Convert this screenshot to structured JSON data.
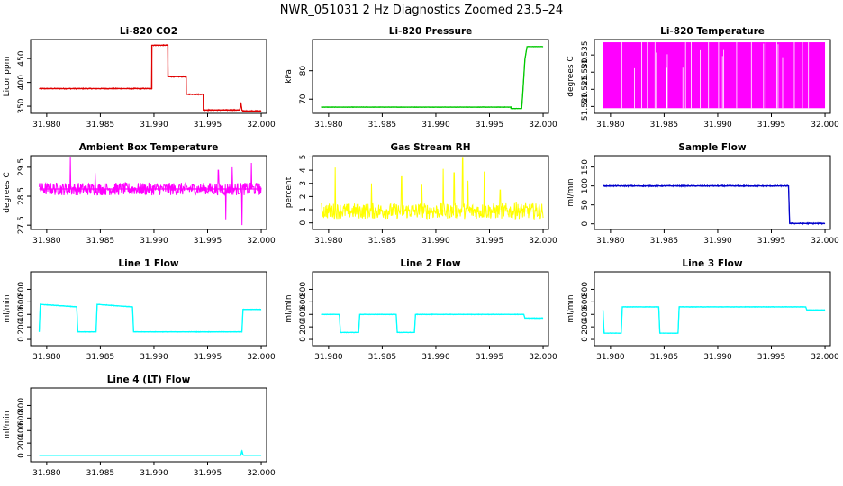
{
  "figure": {
    "title": "NWR_051031  2 Hz Diagnostics Zoomed 23.5–24"
  },
  "chart_data": [
    {
      "type": "line",
      "title": "Li-820 CO2",
      "ylabel": "Licor ppm",
      "xlim": [
        31.9785,
        32.0005
      ],
      "ylim": [
        335,
        490
      ],
      "xticks": [
        "31.980",
        "31.985",
        "31.990",
        "31.995",
        "32.000"
      ],
      "yticks": [
        "350",
        "400",
        "450"
      ],
      "color": "#e00000",
      "noise": 1.2,
      "series": [
        {
          "name": "CO2",
          "x": [
            31.9793,
            31.9898,
            31.9898,
            31.9913,
            31.9913,
            31.993,
            31.993,
            31.9946,
            31.9946,
            31.998,
            31.9981,
            31.9982,
            31.9983,
            32.0
          ],
          "y": [
            387,
            387,
            478,
            478,
            412,
            412,
            375,
            375,
            342,
            342,
            358,
            342,
            340,
            340
          ]
        }
      ]
    },
    {
      "type": "line",
      "title": "Li-820 Pressure",
      "ylabel": "kPa",
      "xlim": [
        31.9785,
        32.0005
      ],
      "ylim": [
        65,
        91
      ],
      "xticks": [
        "31.980",
        "31.985",
        "31.990",
        "31.995",
        "32.000"
      ],
      "yticks": [
        "70",
        "80"
      ],
      "color": "#00c800",
      "noise": 0.1,
      "series": [
        {
          "name": "Pressure",
          "x": [
            31.9793,
            31.997,
            31.997,
            31.998,
            31.9981,
            31.9983,
            31.9985,
            32.0
          ],
          "y": [
            67.2,
            67.2,
            66.7,
            66.7,
            72,
            84,
            88.5,
            88.5
          ]
        }
      ]
    },
    {
      "type": "line",
      "title": "Li-820 Temperature",
      "ylabel": "degrees C",
      "xlim": [
        31.9785,
        32.0005
      ],
      "ylim": [
        51.518,
        51.5395
      ],
      "xticks": [
        "31.980",
        "31.985",
        "31.990",
        "31.995",
        "32.000"
      ],
      "yticks": [
        "51.520",
        "51.525",
        "51.530",
        "51.535"
      ],
      "color": "#ff00ff",
      "band": [
        51.5195,
        51.5387
      ],
      "series": [
        {
          "name": "Temperature",
          "x": [
            31.9793,
            32.0
          ],
          "y": [
            51.5195,
            51.5387
          ]
        }
      ]
    },
    {
      "type": "line",
      "title": "Ambient Box Temperature",
      "ylabel": "degrees C",
      "xlim": [
        31.9785,
        32.0005
      ],
      "ylim": [
        27.35,
        29.9
      ],
      "xticks": [
        "31.980",
        "31.985",
        "31.990",
        "31.995",
        "32.000"
      ],
      "yticks": [
        "27.5",
        "28.5",
        "29.5"
      ],
      "color": "#ff00ff",
      "noise": 0.22,
      "spikes": [
        [
          31.9822,
          29.85
        ],
        [
          31.9845,
          29.3
        ],
        [
          31.996,
          29.4
        ],
        [
          31.9967,
          27.7
        ],
        [
          31.9973,
          29.5
        ],
        [
          31.9982,
          27.5
        ],
        [
          31.9991,
          29.65
        ]
      ],
      "series": [
        {
          "name": "Ambient",
          "x": [
            31.9793,
            32.0
          ],
          "y": [
            28.75,
            28.75
          ]
        }
      ]
    },
    {
      "type": "line",
      "title": "Gas Stream RH",
      "ylabel": "percent",
      "xlim": [
        31.9785,
        32.0005
      ],
      "ylim": [
        -0.5,
        5.1
      ],
      "xticks": [
        "31.980",
        "31.985",
        "31.990",
        "31.995",
        "32.000"
      ],
      "yticks": [
        "0",
        "1",
        "2",
        "3",
        "4",
        "5"
      ],
      "color": "#ffff00",
      "noise": 0.6,
      "spikes": [
        [
          31.9806,
          4.2
        ],
        [
          31.984,
          3.0
        ],
        [
          31.9868,
          3.5
        ],
        [
          31.9887,
          2.9
        ],
        [
          31.9907,
          4.1
        ],
        [
          31.9917,
          3.8
        ],
        [
          31.9925,
          4.9
        ],
        [
          31.993,
          3.2
        ],
        [
          31.9945,
          3.9
        ],
        [
          31.996,
          2.5
        ],
        [
          31.9975,
          1.6
        ]
      ],
      "series": [
        {
          "name": "RH",
          "x": [
            31.9793,
            32.0
          ],
          "y": [
            0.9,
            0.9
          ]
        }
      ]
    },
    {
      "type": "line",
      "title": "Sample Flow",
      "ylabel": "ml/min",
      "xlim": [
        31.9785,
        32.0005
      ],
      "ylim": [
        -15,
        180
      ],
      "xticks": [
        "31.980",
        "31.985",
        "31.990",
        "31.995",
        "32.000"
      ],
      "yticks": [
        "0",
        "50",
        "100",
        "150"
      ],
      "color": "#0000cc",
      "noise": 1.8,
      "series": [
        {
          "name": "Sample",
          "x": [
            31.9793,
            31.9966,
            31.9967,
            32.0
          ],
          "y": [
            100,
            100,
            1,
            1
          ]
        }
      ]
    },
    {
      "type": "line",
      "title": "Line 1 Flow",
      "ylabel": "ml/min",
      "xlim": [
        31.9785,
        32.0005
      ],
      "ylim": [
        -100,
        1080
      ],
      "xticks": [
        "31.980",
        "31.985",
        "31.990",
        "31.995",
        "32.000"
      ],
      "yticks": [
        "0",
        "200",
        "400",
        "600",
        "800"
      ],
      "color": "#00ffff",
      "noise": 6,
      "series": [
        {
          "name": "Line 1",
          "x": [
            31.9793,
            31.9794,
            31.9828,
            31.9829,
            31.9846,
            31.9847,
            31.988,
            31.9881,
            31.9982,
            31.9983,
            32.0
          ],
          "y": [
            120,
            560,
            520,
            120,
            120,
            560,
            520,
            120,
            120,
            480,
            480
          ]
        }
      ]
    },
    {
      "type": "line",
      "title": "Line 2 Flow",
      "ylabel": "ml/min",
      "xlim": [
        31.9785,
        32.0005
      ],
      "ylim": [
        -100,
        1080
      ],
      "xticks": [
        "31.980",
        "31.985",
        "31.990",
        "31.995",
        "32.000"
      ],
      "yticks": [
        "0",
        "200",
        "400",
        "600",
        "800"
      ],
      "color": "#00ffff",
      "noise": 6,
      "series": [
        {
          "name": "Line 2",
          "x": [
            31.9793,
            31.981,
            31.9811,
            31.9828,
            31.9829,
            31.9863,
            31.9864,
            31.988,
            31.9881,
            31.9982,
            31.9983,
            32.0
          ],
          "y": [
            400,
            400,
            110,
            110,
            400,
            400,
            110,
            110,
            400,
            400,
            340,
            340
          ]
        }
      ]
    },
    {
      "type": "line",
      "title": "Line 3 Flow",
      "ylabel": "ml/min",
      "xlim": [
        31.9785,
        32.0005
      ],
      "ylim": [
        -100,
        1080
      ],
      "xticks": [
        "31.980",
        "31.985",
        "31.990",
        "31.995",
        "32.000"
      ],
      "yticks": [
        "0",
        "200",
        "400",
        "600",
        "800"
      ],
      "color": "#00ffff",
      "noise": 5,
      "series": [
        {
          "name": "Line 3",
          "x": [
            31.9793,
            31.9794,
            31.981,
            31.9811,
            31.9845,
            31.9846,
            31.9863,
            31.9864,
            31.9982,
            31.9983,
            32.0
          ],
          "y": [
            470,
            100,
            100,
            520,
            520,
            100,
            100,
            520,
            520,
            470,
            470
          ]
        }
      ]
    },
    {
      "type": "line",
      "title": "Line 4 (LT) Flow",
      "ylabel": "ml/min",
      "xlim": [
        31.9785,
        32.0005
      ],
      "ylim": [
        -100,
        1080
      ],
      "xticks": [
        "31.980",
        "31.985",
        "31.990",
        "31.995",
        "32.000"
      ],
      "yticks": [
        "0",
        "200",
        "400",
        "600",
        "800"
      ],
      "color": "#00ffff",
      "noise": 2,
      "series": [
        {
          "name": "Line 4 (LT)",
          "x": [
            31.9793,
            31.9981,
            31.9982,
            31.9983,
            31.9984,
            32.0
          ],
          "y": [
            3,
            3,
            80,
            10,
            3,
            3
          ]
        }
      ]
    }
  ]
}
